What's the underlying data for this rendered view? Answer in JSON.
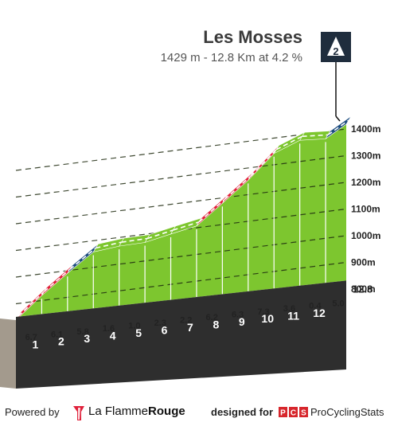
{
  "climb": {
    "name": "Les Mosses",
    "summary": "1429 m - 12.8 Km at 4.2 %",
    "category": "2"
  },
  "colors": {
    "green": "#7dc62f",
    "red": "#e0203a",
    "blue": "#1c4c80",
    "base": "#2e2e2e",
    "soil": "#a39a8d"
  },
  "chart_data": {
    "type": "area",
    "x_unit": "km",
    "y_unit": "m",
    "km_markers": [
      "1",
      "2",
      "3",
      "4",
      "5",
      "6",
      "7",
      "8",
      "9",
      "10",
      "11",
      "12"
    ],
    "total_km_label": "12.8",
    "segments": [
      {
        "km": 1,
        "gradient": 6.7,
        "label": "6.7",
        "color": "red"
      },
      {
        "km": 2,
        "gradient": 6.1,
        "label": "6.1",
        "color": "red"
      },
      {
        "km": 3,
        "gradient": 5.8,
        "label": "5.8",
        "color": "blue"
      },
      {
        "km": 4,
        "gradient": 1.6,
        "label": "1.6",
        "color": "green"
      },
      {
        "km": 5,
        "gradient": 1.0,
        "label": "1.0",
        "color": "green"
      },
      {
        "km": 6,
        "gradient": 2.3,
        "label": "2.3",
        "color": "green"
      },
      {
        "km": 7,
        "gradient": 2.2,
        "label": "2.2",
        "color": "green"
      },
      {
        "km": 8,
        "gradient": 6.2,
        "label": "6.2",
        "color": "red"
      },
      {
        "km": 9,
        "gradient": 6.3,
        "label": "6.3",
        "color": "red"
      },
      {
        "km": 10,
        "gradient": 7.3,
        "label": "7.3",
        "color": "red"
      },
      {
        "km": 11,
        "gradient": 3.6,
        "label": "3.6",
        "color": "green"
      },
      {
        "km": 12,
        "gradient": 0.4,
        "label": "0.4",
        "color": "green"
      },
      {
        "km": 12.8,
        "gradient": 5.0,
        "label": "5.0",
        "color": "blue"
      }
    ],
    "elevation_ticks": [
      {
        "value": 800,
        "label": "800m"
      },
      {
        "value": 900,
        "label": "900m"
      },
      {
        "value": 1000,
        "label": "1000m"
      },
      {
        "value": 1100,
        "label": "1100m"
      },
      {
        "value": 1200,
        "label": "1200m"
      },
      {
        "value": 1300,
        "label": "1300m"
      },
      {
        "value": 1400,
        "label": "1400m"
      }
    ]
  },
  "footer": {
    "powered_by": "Powered by",
    "brand_plain": "La Flamme",
    "brand_bold": "Rouge",
    "designed_for": "designed for",
    "pcs_logo": "PCS",
    "pcs_name": "ProCyclingStats"
  }
}
